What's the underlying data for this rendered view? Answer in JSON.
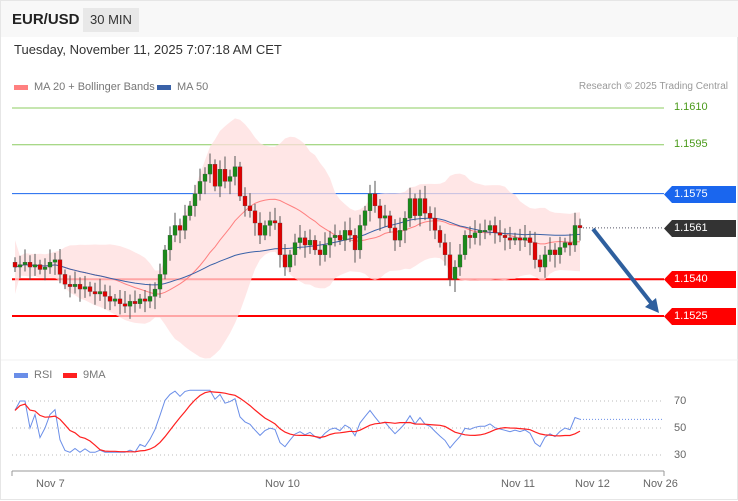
{
  "header": {
    "symbol": "EUR/USD",
    "timeframe": "30 MIN",
    "datetime": "Tuesday, November 11, 2025 7:07:18 AM CET"
  },
  "legend": {
    "ma20": "MA 20 + Bollinger Bands",
    "ma50": "MA 50",
    "copyright": "Research © 2025 Trading Central",
    "rsi": "RSI",
    "rsi_ma": "9MA"
  },
  "colors": {
    "ma20": "#ff8080",
    "ma50": "#3a62a8",
    "up": "#1a8a1a",
    "down": "#e00000",
    "resistance_green": "#8ccc60",
    "pivot_blue": "#1a66ee",
    "support_red": "#ff0000",
    "last": "#333333",
    "arrow": "#2e5f9e",
    "rsi": "#6a8ee8",
    "rsi_ma": "#ff2020"
  },
  "levels": [
    {
      "price": "1.1610",
      "kind": "resistance-minor"
    },
    {
      "price": "1.1595",
      "kind": "resistance-minor"
    },
    {
      "price": "1.1575",
      "kind": "pivot"
    },
    {
      "price": "1.1561",
      "kind": "last"
    },
    {
      "price": "1.1540",
      "kind": "support"
    },
    {
      "price": "1.1525",
      "kind": "support"
    }
  ],
  "rsi_axis": {
    "ticks": [
      "70",
      "50",
      "30"
    ]
  },
  "x_axis": {
    "ticks": [
      "Nov 7",
      "Nov 10",
      "Nov 11",
      "Nov 12",
      "Nov 26"
    ]
  },
  "chart_data": {
    "type": "candlestick",
    "instrument": "EUR/USD",
    "interval": "30 MIN",
    "closes": [
      1.1545,
      1.1546,
      1.1547,
      1.1545,
      1.1546,
      1.1544,
      1.1545,
      1.1547,
      1.1548,
      1.1542,
      1.1538,
      1.1537,
      1.1538,
      1.1536,
      1.1537,
      1.1535,
      1.1534,
      1.1535,
      1.1533,
      1.1531,
      1.1532,
      1.153,
      1.1529,
      1.1531,
      1.153,
      1.1532,
      1.1531,
      1.1533,
      1.1536,
      1.1542,
      1.1552,
      1.1558,
      1.1562,
      1.156,
      1.1566,
      1.157,
      1.1575,
      1.158,
      1.1583,
      1.1587,
      1.1578,
      1.1585,
      1.158,
      1.1582,
      1.1586,
      1.1574,
      1.157,
      1.1568,
      1.1563,
      1.1558,
      1.1562,
      1.1564,
      1.1563,
      1.155,
      1.1545,
      1.155,
      1.1555,
      1.1557,
      1.1554,
      1.1556,
      1.1552,
      1.155,
      1.1554,
      1.1557,
      1.1558,
      1.1556,
      1.156,
      1.1558,
      1.1552,
      1.1562,
      1.1568,
      1.1575,
      1.157,
      1.1565,
      1.1566,
      1.1561,
      1.1556,
      1.156,
      1.1565,
      1.1573,
      1.1566,
      1.1573,
      1.1567,
      1.1565,
      1.156,
      1.1555,
      1.155,
      1.154,
      1.1545,
      1.155,
      1.1558,
      1.1557,
      1.1559,
      1.156,
      1.156,
      1.1562,
      1.1559,
      1.1558,
      1.1557,
      1.1556,
      1.1557,
      1.1556,
      1.1557,
      1.1555,
      1.1548,
      1.1545,
      1.155,
      1.1552,
      1.155,
      1.1553,
      1.1555,
      1.1554,
      1.1562,
      1.1561
    ],
    "indicators": [
      "MA 20",
      "Bollinger Bands",
      "MA 50",
      "RSI",
      "9MA"
    ],
    "y_range": [
      1.15,
      1.1625
    ],
    "rsi_range": [
      20,
      80
    ],
    "forecast": {
      "from": "1.1561",
      "to": "1.1525",
      "direction": "down"
    }
  }
}
